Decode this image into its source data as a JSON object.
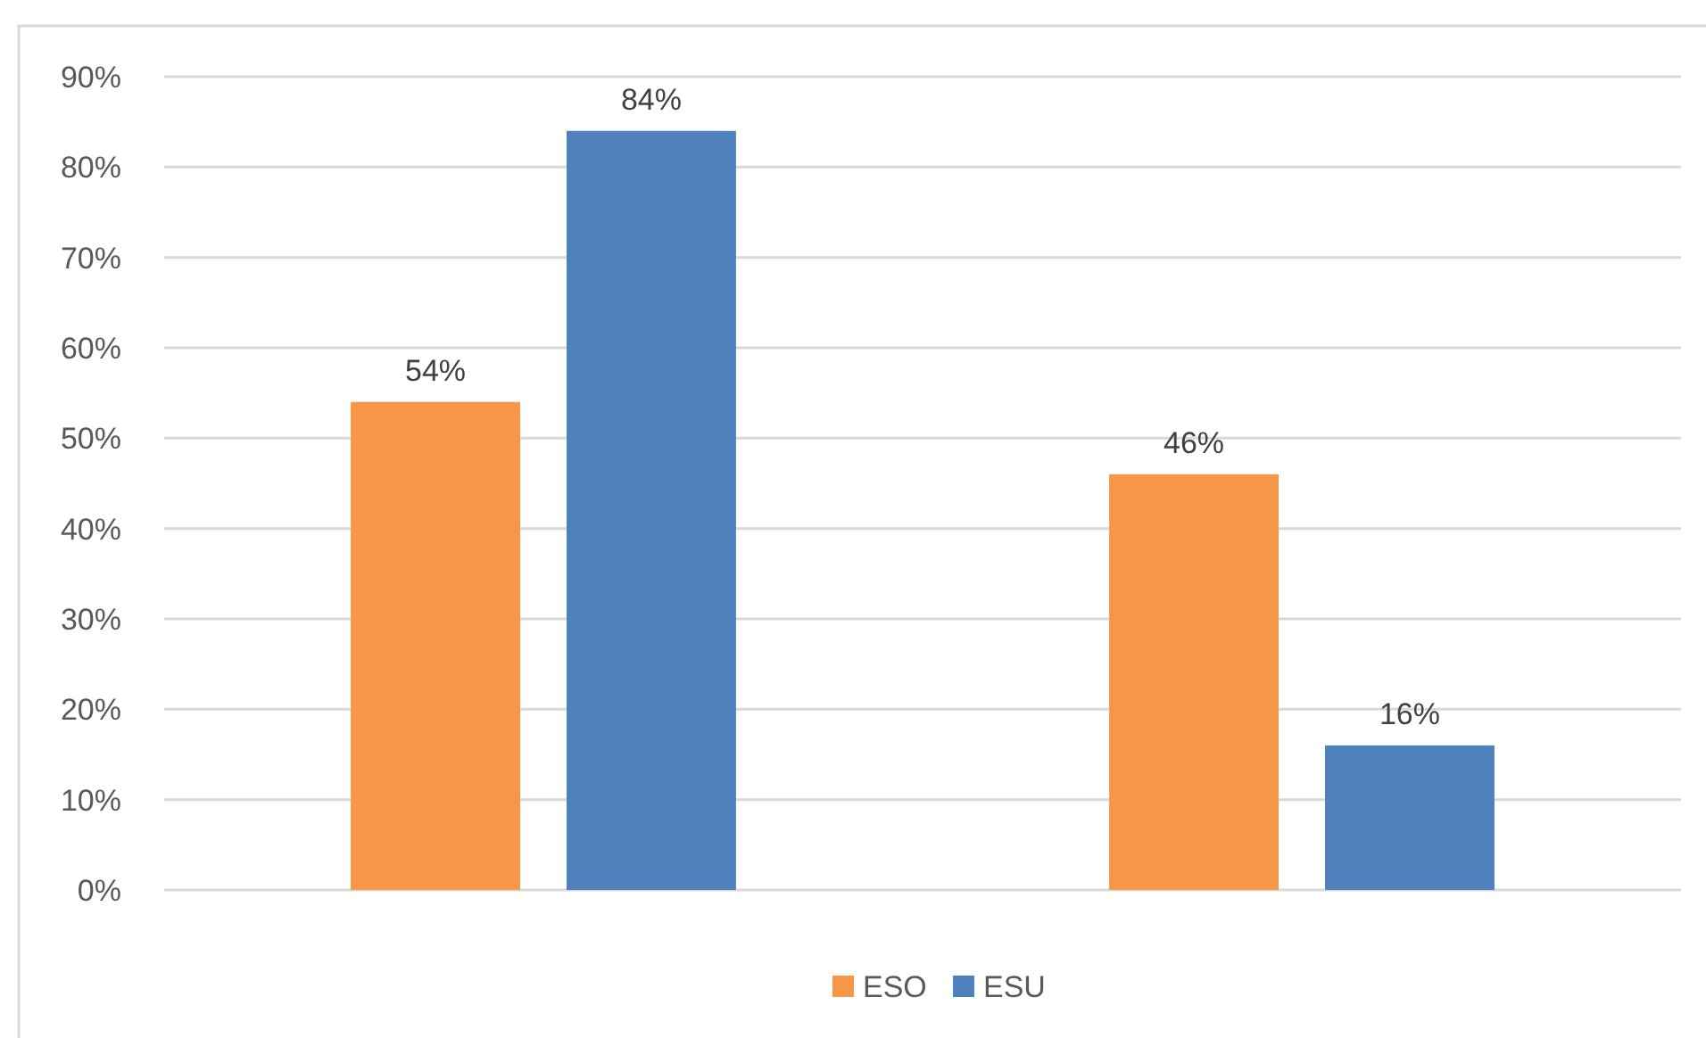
{
  "chart_data": {
    "type": "bar",
    "categories": [
      null,
      null
    ],
    "series": [
      {
        "name": "ESO",
        "color": "#f79646",
        "values": [
          54,
          46
        ],
        "value_labels": [
          "54%",
          "46%"
        ]
      },
      {
        "name": "ESU",
        "color": "#4f81bd",
        "values": [
          84,
          16
        ],
        "value_labels": [
          "84%",
          "16%"
        ]
      }
    ],
    "ylim": [
      0,
      90
    ],
    "yticks": [
      {
        "value": 0,
        "label": "0%"
      },
      {
        "value": 10,
        "label": "10%"
      },
      {
        "value": 20,
        "label": "20%"
      },
      {
        "value": 30,
        "label": "30%"
      },
      {
        "value": 40,
        "label": "40%"
      },
      {
        "value": 50,
        "label": "50%"
      },
      {
        "value": 60,
        "label": "60%"
      },
      {
        "value": 70,
        "label": "70%"
      },
      {
        "value": 80,
        "label": "80%"
      },
      {
        "value": 90,
        "label": "90%"
      }
    ],
    "grid": "y",
    "legend": "bottom"
  }
}
